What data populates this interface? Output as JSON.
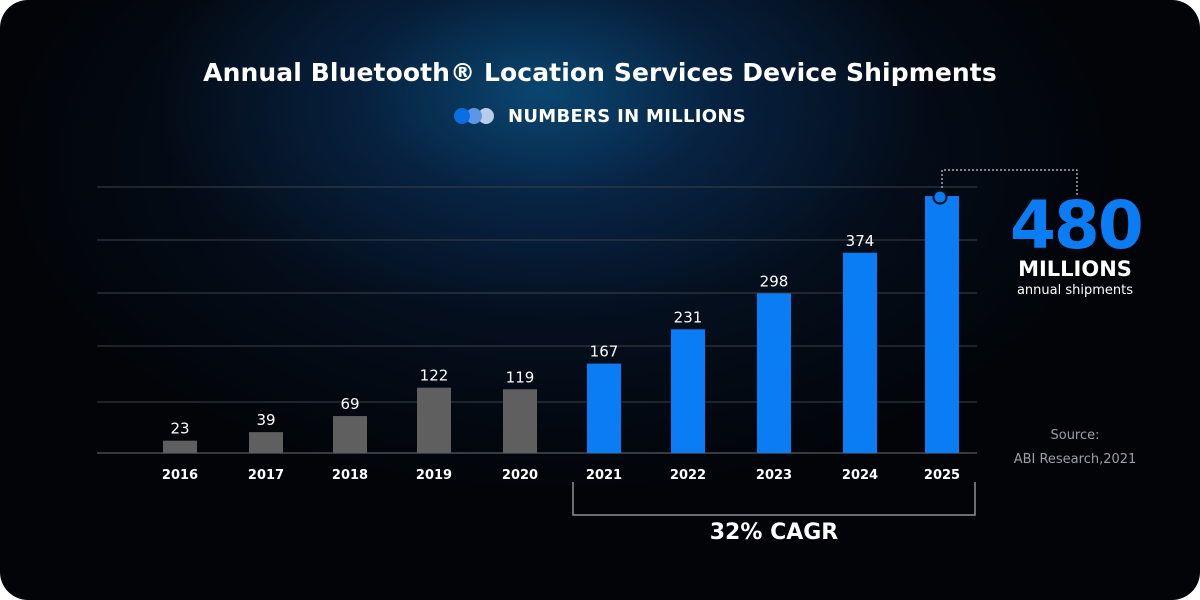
{
  "chart_data": {
    "type": "bar",
    "title": "Annual Bluetooth® Location Services Device Shipments",
    "subtitle": "NUMBERS IN MILLIONS",
    "categories": [
      "2016",
      "2017",
      "2018",
      "2019",
      "2020",
      "2021",
      "2022",
      "2023",
      "2024",
      "2025"
    ],
    "values": [
      23,
      39,
      69,
      122,
      119,
      167,
      231,
      298,
      374,
      480
    ],
    "ylim": [
      0,
      500
    ],
    "grid": true,
    "colors": {
      "historical": "#5f5f5f",
      "forecast": "#0a7df5",
      "accent": "#0a7df5"
    },
    "forecast_start_index": 5,
    "highlight": {
      "value": "480",
      "unit": "MILLIONS",
      "caption": "annual shipments"
    },
    "cagr_label": "32% CAGR"
  },
  "source": {
    "label": "Source:",
    "value": "ABI Research,2021"
  },
  "legend_icon": "three-overlapping-dots-icon"
}
